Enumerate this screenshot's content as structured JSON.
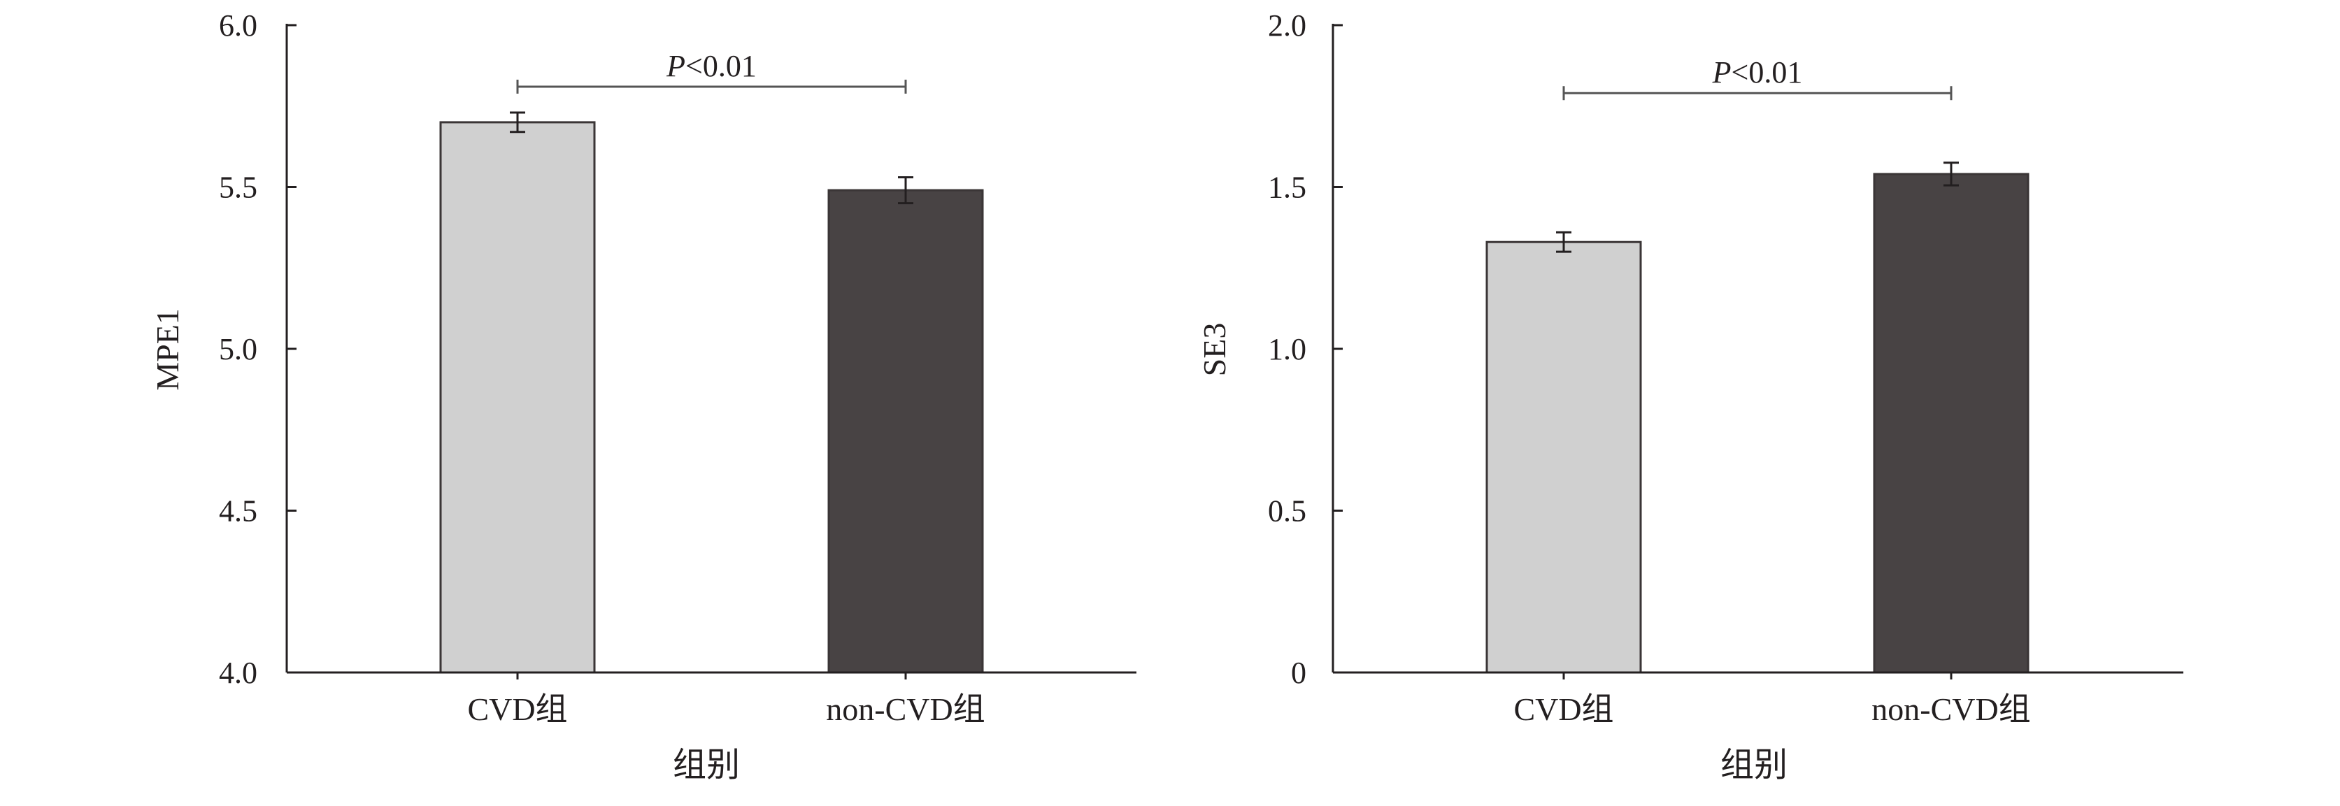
{
  "chart_data": [
    {
      "type": "bar",
      "categories": [
        "CVD组",
        "non-CVD组"
      ],
      "values": [
        5.7,
        5.49
      ],
      "errors": [
        0.03,
        0.04
      ],
      "colors": [
        "#d0d0d0",
        "#484344"
      ],
      "xlabel": "组别",
      "ylabel": "MPE1",
      "ylim": [
        4.0,
        6.0
      ],
      "yticks": [
        4.0,
        4.5,
        5.0,
        5.5,
        6.0
      ],
      "yticklabels": [
        "4.0",
        "4.5",
        "5.0",
        "5.5",
        "6.0"
      ],
      "significance": {
        "between": [
          0,
          1
        ],
        "p_symbol": "P",
        "p_text": "<0.01",
        "level": 5.81
      }
    },
    {
      "type": "bar",
      "categories": [
        "CVD组",
        "non-CVD组"
      ],
      "values": [
        1.33,
        1.54
      ],
      "errors": [
        0.03,
        0.035
      ],
      "colors": [
        "#d0d0d0",
        "#484344"
      ],
      "xlabel": "组别",
      "ylabel": "SE3",
      "ylim": [
        0,
        2.0
      ],
      "yticks": [
        0,
        0.5,
        1.0,
        1.5,
        2.0
      ],
      "yticklabels": [
        "0",
        "0.5",
        "1.0",
        "1.5",
        "2.0"
      ],
      "significance": {
        "between": [
          0,
          1
        ],
        "p_symbol": "P",
        "p_text": "<0.01",
        "level": 1.79
      }
    }
  ]
}
